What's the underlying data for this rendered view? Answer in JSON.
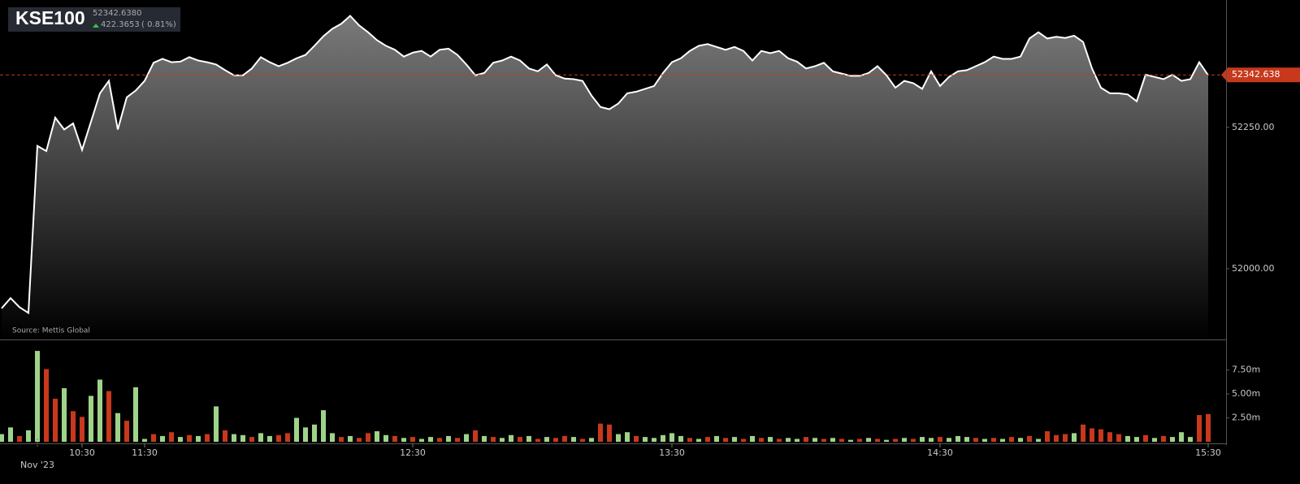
{
  "header": {
    "title": "KSE100",
    "price": "52342.6380",
    "change": "422.3653",
    "change_pct": "( 0.81%)"
  },
  "source": "Source: Mettis Global",
  "chart_data": [
    {
      "type": "area",
      "color": "#ffffff",
      "xlim": [
        0,
        135
      ],
      "ylim": [
        51875,
        52475
      ],
      "yticks": [
        {
          "value": 52000,
          "label": "52000.00"
        },
        {
          "value": 52250,
          "label": "52250.00"
        }
      ],
      "last_value": 52342.638,
      "last_color": "#c8381c",
      "values": [
        51930,
        51948,
        51932,
        51922,
        52217,
        52208,
        52267,
        52246,
        52257,
        52210,
        52260,
        52310,
        52332,
        52246,
        52303,
        52315,
        52332,
        52364,
        52371,
        52365,
        52366,
        52374,
        52368,
        52365,
        52361,
        52351,
        52342,
        52342,
        52354,
        52374,
        52365,
        52358,
        52364,
        52372,
        52378,
        52394,
        52411,
        52424,
        52433,
        52447,
        52430,
        52418,
        52404,
        52394,
        52387,
        52375,
        52382,
        52385,
        52375,
        52387,
        52389,
        52378,
        52361,
        52342,
        52346,
        52364,
        52368,
        52375,
        52368,
        52354,
        52349,
        52361,
        52342,
        52336,
        52335,
        52332,
        52306,
        52286,
        52282,
        52292,
        52310,
        52313,
        52318,
        52323,
        52346,
        52365,
        52372,
        52385,
        52394,
        52397,
        52392,
        52387,
        52392,
        52385,
        52368,
        52385,
        52381,
        52385,
        52372,
        52366,
        52354,
        52358,
        52364,
        52349,
        52345,
        52341,
        52341,
        52346,
        52358,
        52342,
        52320,
        52332,
        52328,
        52318,
        52349,
        52323,
        52339,
        52349,
        52351,
        52358,
        52365,
        52375,
        52371,
        52371,
        52375,
        52407,
        52418,
        52407,
        52410,
        52408,
        52412,
        52401,
        52354,
        52320,
        52310,
        52310,
        52308,
        52296,
        52343,
        52339,
        52335,
        52343,
        52332,
        52335,
        52365,
        52342
      ]
    },
    {
      "type": "bar",
      "xlim": [
        0,
        135
      ],
      "ylim": [
        0,
        10.7
      ],
      "yticks": [
        {
          "value": 2.5,
          "label": "2.50m"
        },
        {
          "value": 5,
          "label": "5.00m"
        },
        {
          "value": 7.5,
          "label": "7.50m"
        }
      ],
      "xticks": [
        {
          "value": 4,
          "label": "Nov '23"
        },
        {
          "value": 9,
          "label": "10:30"
        },
        {
          "value": 16,
          "label": "11:30"
        },
        {
          "value": 46,
          "label": "12:30"
        },
        {
          "value": 75,
          "label": "13:30"
        },
        {
          "value": 105,
          "label": "14:30"
        },
        {
          "value": 135,
          "label": "15:30"
        }
      ],
      "values": [
        0.8,
        1.5,
        0.6,
        1.2,
        9.5,
        7.6,
        4.5,
        5.6,
        3.2,
        2.6,
        4.8,
        6.5,
        5.3,
        3.0,
        2.2,
        5.7,
        0.3,
        0.8,
        0.6,
        1.0,
        0.5,
        0.7,
        0.6,
        0.8,
        3.7,
        1.2,
        0.8,
        0.7,
        0.5,
        0.9,
        0.6,
        0.7,
        0.9,
        2.5,
        1.5,
        1.8,
        3.3,
        0.9,
        0.5,
        0.6,
        0.4,
        0.9,
        1.1,
        0.7,
        0.6,
        0.4,
        0.5,
        0.3,
        0.5,
        0.4,
        0.6,
        0.4,
        0.8,
        1.2,
        0.6,
        0.5,
        0.4,
        0.7,
        0.5,
        0.6,
        0.3,
        0.5,
        0.4,
        0.6,
        0.5,
        0.3,
        0.4,
        1.9,
        1.8,
        0.8,
        1.0,
        0.6,
        0.5,
        0.4,
        0.7,
        0.9,
        0.6,
        0.4,
        0.3,
        0.5,
        0.6,
        0.4,
        0.5,
        0.3,
        0.6,
        0.4,
        0.5,
        0.3,
        0.4,
        0.3,
        0.5,
        0.4,
        0.3,
        0.4,
        0.3,
        0.2,
        0.3,
        0.4,
        0.3,
        0.2,
        0.3,
        0.4,
        0.3,
        0.5,
        0.4,
        0.5,
        0.4,
        0.6,
        0.5,
        0.4,
        0.3,
        0.4,
        0.3,
        0.5,
        0.4,
        0.6,
        0.3,
        1.1,
        0.7,
        0.8,
        0.9,
        1.8,
        1.4,
        1.3,
        1.0,
        0.8,
        0.6,
        0.5,
        0.7,
        0.4,
        0.6,
        0.5,
        1.0,
        0.5,
        2.8,
        2.9
      ],
      "colors": [
        "#9fd38a",
        "#9fd38a",
        "#c8381c",
        "#9fd38a",
        "#9fd38a",
        "#c8381c",
        "#c8381c",
        "#9fd38a",
        "#c8381c",
        "#c8381c",
        "#9fd38a",
        "#9fd38a",
        "#c8381c",
        "#9fd38a",
        "#c8381c",
        "#9fd38a",
        "#9fd38a",
        "#c8381c",
        "#9fd38a",
        "#c8381c",
        "#9fd38a",
        "#c8381c",
        "#9fd38a",
        "#c8381c",
        "#9fd38a",
        "#c8381c",
        "#9fd38a",
        "#9fd38a",
        "#c8381c",
        "#9fd38a",
        "#9fd38a",
        "#c8381c",
        "#c8381c",
        "#9fd38a",
        "#9fd38a",
        "#9fd38a",
        "#9fd38a",
        "#9fd38a",
        "#c8381c",
        "#9fd38a",
        "#c8381c",
        "#c8381c",
        "#9fd38a",
        "#9fd38a",
        "#c8381c",
        "#9fd38a",
        "#c8381c",
        "#9fd38a",
        "#9fd38a",
        "#c8381c",
        "#9fd38a",
        "#c8381c",
        "#9fd38a",
        "#c8381c",
        "#9fd38a",
        "#c8381c",
        "#9fd38a",
        "#9fd38a",
        "#c8381c",
        "#9fd38a",
        "#c8381c",
        "#9fd38a",
        "#c8381c",
        "#c8381c",
        "#9fd38a",
        "#c8381c",
        "#9fd38a",
        "#c8381c",
        "#c8381c",
        "#9fd38a",
        "#9fd38a",
        "#c8381c",
        "#9fd38a",
        "#9fd38a",
        "#9fd38a",
        "#9fd38a",
        "#9fd38a",
        "#c8381c",
        "#9fd38a",
        "#c8381c",
        "#9fd38a",
        "#c8381c",
        "#9fd38a",
        "#c8381c",
        "#9fd38a",
        "#c8381c",
        "#9fd38a",
        "#c8381c",
        "#9fd38a",
        "#9fd38a",
        "#c8381c",
        "#9fd38a",
        "#c8381c",
        "#9fd38a",
        "#c8381c",
        "#9fd38a",
        "#c8381c",
        "#9fd38a",
        "#c8381c",
        "#9fd38a",
        "#c8381c",
        "#9fd38a",
        "#c8381c",
        "#9fd38a",
        "#9fd38a",
        "#c8381c",
        "#9fd38a",
        "#9fd38a",
        "#9fd38a",
        "#c8381c",
        "#9fd38a",
        "#c8381c",
        "#9fd38a",
        "#c8381c",
        "#9fd38a",
        "#c8381c",
        "#9fd38a",
        "#c8381c",
        "#c8381c",
        "#c8381c",
        "#9fd38a",
        "#c8381c",
        "#c8381c",
        "#c8381c",
        "#c8381c",
        "#c8381c",
        "#9fd38a",
        "#9fd38a",
        "#c8381c",
        "#9fd38a",
        "#c8381c",
        "#9fd38a",
        "#9fd38a",
        "#9fd38a",
        "#c8381c",
        "#c8381c"
      ]
    }
  ]
}
